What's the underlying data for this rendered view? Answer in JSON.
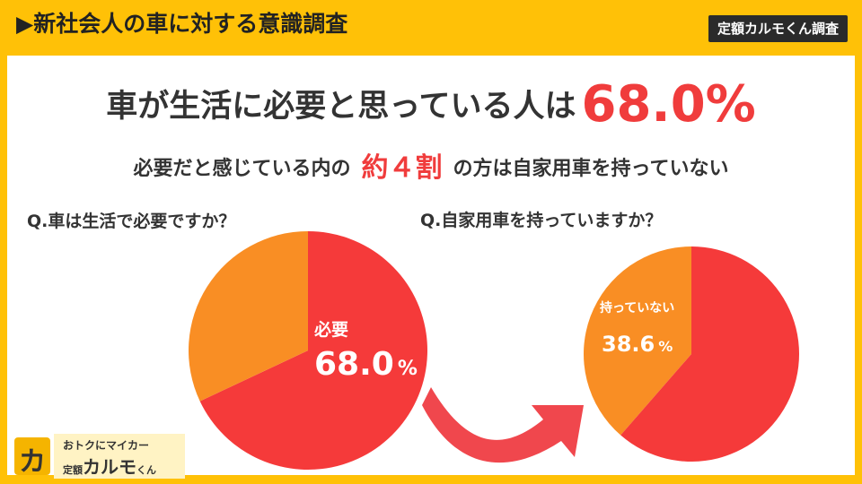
{
  "header": {
    "title": "▶新社会人の車に対する意識調査",
    "badge": "定額カルモくん調査"
  },
  "headline": {
    "text": "車が生活に必要と思っている人は",
    "highlight": "68.0%"
  },
  "subline": {
    "before": "必要だと感じている内の",
    "highlight": "約４割",
    "after": "の方は自家用車を持っていない"
  },
  "chart_data": [
    {
      "type": "pie",
      "title": "Q.車は生活で必要ですか？",
      "slices": [
        {
          "label": "必要",
          "value": 68.0,
          "color": "#f53a3a"
        },
        {
          "label": "",
          "value": 32.0,
          "color": "#f98e24"
        }
      ],
      "annotation": {
        "label": "必要",
        "value": "68.0",
        "unit": "%"
      }
    },
    {
      "type": "pie",
      "title": "Q.自家用車を持っていますか？",
      "slices": [
        {
          "label": "持っていない",
          "value": 38.6,
          "color": "#f98e24"
        },
        {
          "label": "",
          "value": 61.4,
          "color": "#f53a3a"
        }
      ],
      "annotation": {
        "label": "持っていない",
        "value": "38.6",
        "unit": "%"
      }
    }
  ],
  "colors": {
    "background": "#ffc107",
    "accent_red": "#f03c3c",
    "orange": "#f98e24",
    "arrow": "#f0474d"
  },
  "logo": {
    "mark": "カ",
    "line1": "おトクにマイカー",
    "line2_prefix": "定額",
    "line2_name": "カルモ",
    "line2_suffix": "くん"
  }
}
